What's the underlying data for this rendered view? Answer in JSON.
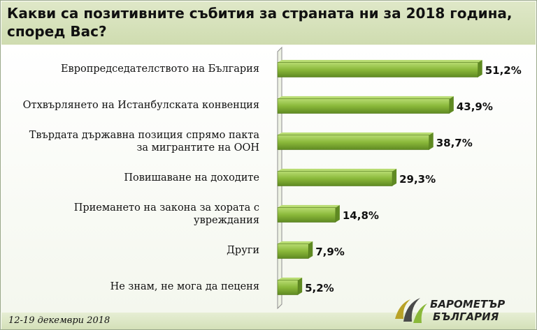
{
  "title": "Какви са позитивните събития за страната ни  за 2018 година, според Вас?",
  "footer_date": "12-19 декември 2018",
  "colors": {
    "bar": "#8ab83a",
    "bar_dark": "#5f8a22",
    "bar_light": "#b8dc72",
    "header_band": "#d4e0b8"
  },
  "logo": {
    "line1": "БАРОМЕТЪР",
    "line2": "БЪЛГАРИЯ"
  },
  "chart_data": {
    "type": "bar",
    "orientation": "horizontal",
    "title": "Какви са позитивните събития за страната ни  за 2018 година, според Вас?",
    "categories": [
      "Европредседателството на България",
      "Отхвърлянето на Истанбулската конвенция",
      "Твърдата държавна позиция спрямо пакта за мигрантите на ООН",
      "Повишаване на доходите",
      "Приемането на закона за хората с увреждания",
      "Други",
      "Не знам, не мога да преценя"
    ],
    "category_lines": [
      [
        "Европредседателството на България"
      ],
      [
        "Отхвърлянето на Истанбулската конвенция"
      ],
      [
        "Твърдата държавна позиция спрямо пакта",
        "за мигрантите на ООН"
      ],
      [
        "Повишаване на доходите"
      ],
      [
        "Приемането на закона за хората с",
        "увреждания"
      ],
      [
        "Други"
      ],
      [
        "Не знам, не мога да пеценя"
      ]
    ],
    "values": [
      51.2,
      43.9,
      38.7,
      29.3,
      14.8,
      7.9,
      5.2
    ],
    "labels": [
      "51,2%",
      "43,9%",
      "38,7%",
      "29,3%",
      "14,8%",
      "7,9%",
      "5,2%"
    ],
    "xlim": [
      0,
      60
    ],
    "grid": false,
    "legend": "none"
  }
}
